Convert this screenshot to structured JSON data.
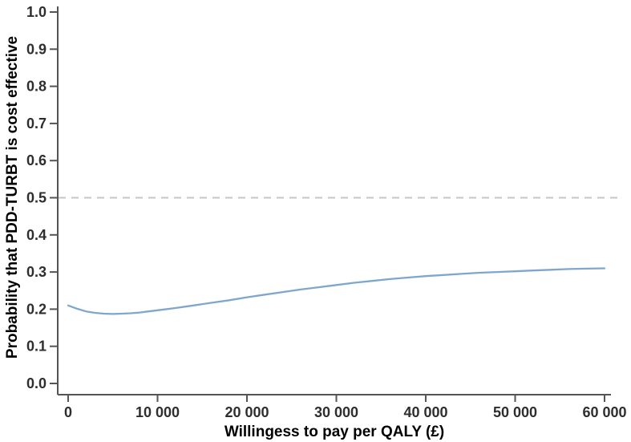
{
  "chart_data": {
    "type": "line",
    "title": "",
    "xlabel": "Willingess to pay per QALY (£)",
    "ylabel": "Probability that PDD-TURBT is cost effective",
    "xlim": [
      0,
      60000
    ],
    "ylim": [
      0.0,
      1.0
    ],
    "grid": false,
    "legend": "none",
    "xticks": {
      "values": [
        0,
        10000,
        20000,
        30000,
        40000,
        50000,
        60000
      ],
      "labels": [
        "0",
        "10 000",
        "20 000",
        "30 000",
        "40 000",
        "50 000",
        "60 000"
      ]
    },
    "yticks": {
      "values": [
        0.0,
        0.1,
        0.2,
        0.3,
        0.4,
        0.5,
        0.6,
        0.7,
        0.8,
        0.9,
        1.0
      ],
      "labels": [
        "0.0",
        "0.1",
        "0.2",
        "0.3",
        "0.4",
        "0.5",
        "0.6",
        "0.7",
        "0.8",
        "0.9",
        "1.0"
      ]
    },
    "reference_line": {
      "y": 0.5,
      "style": "dashed",
      "color": "#c6c6c6"
    },
    "series": [
      {
        "name": "PDD-TURBT",
        "color": "#7fa7cd",
        "x": [
          0,
          1000,
          2000,
          3000,
          4000,
          5000,
          6000,
          7000,
          8000,
          9000,
          10000,
          12000,
          14000,
          16000,
          18000,
          20000,
          22000,
          24000,
          26000,
          28000,
          30000,
          32000,
          34000,
          36000,
          38000,
          40000,
          42000,
          44000,
          46000,
          48000,
          50000,
          52000,
          54000,
          56000,
          58000,
          60000
        ],
        "y": [
          0.21,
          0.201,
          0.194,
          0.19,
          0.188,
          0.187,
          0.188,
          0.189,
          0.191,
          0.194,
          0.197,
          0.203,
          0.21,
          0.217,
          0.224,
          0.232,
          0.239,
          0.246,
          0.253,
          0.259,
          0.265,
          0.271,
          0.276,
          0.281,
          0.285,
          0.289,
          0.292,
          0.295,
          0.298,
          0.3,
          0.302,
          0.304,
          0.306,
          0.308,
          0.309,
          0.31
        ]
      }
    ]
  },
  "colors": {
    "background": "#ffffff",
    "axis": "#555555",
    "tick": "#555555",
    "tick_label": "#2e2e2e",
    "axis_title": "#000000",
    "curve": "#7fa7cd",
    "reference": "#c6c6c6"
  }
}
